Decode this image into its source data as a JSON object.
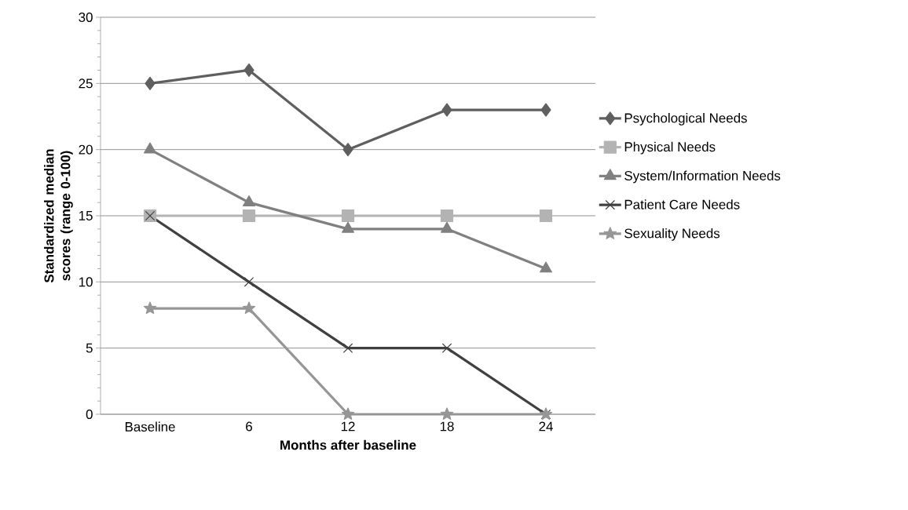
{
  "chart_data": {
    "type": "line",
    "xlabel": "Months after baseline",
    "ylabel": "Standardized median scores (range 0-100)",
    "categories": [
      "Baseline",
      "6",
      "12",
      "18",
      "24"
    ],
    "series": [
      {
        "name": "Psychological Needs",
        "color": "#5f5f5f",
        "marker": "diamond",
        "values": [
          25,
          26,
          20,
          23,
          23
        ]
      },
      {
        "name": "Physical Needs",
        "color": "#b3b3b3",
        "marker": "square",
        "values": [
          15,
          15,
          15,
          15,
          15
        ]
      },
      {
        "name": "System/Information Needs",
        "color": "#808080",
        "marker": "triangle",
        "values": [
          20,
          16,
          14,
          14,
          11
        ]
      },
      {
        "name": "Patient Care Needs",
        "color": "#404040",
        "marker": "cross",
        "values": [
          15,
          10,
          5,
          5,
          0
        ]
      },
      {
        "name": "Sexuality Needs",
        "color": "#969696",
        "marker": "star",
        "values": [
          8,
          8,
          0,
          0,
          0
        ]
      }
    ],
    "ylim": [
      0,
      30
    ],
    "yticks": [
      0,
      5,
      10,
      15,
      20,
      25,
      30
    ],
    "grid": "y",
    "legend": "right",
    "line_style": "solid"
  }
}
